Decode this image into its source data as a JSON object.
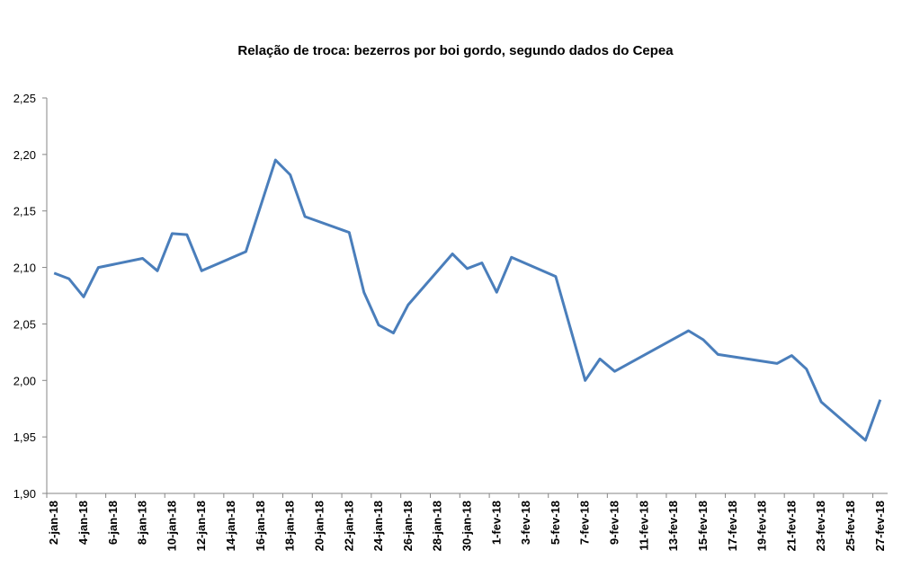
{
  "chart_data": {
    "type": "line",
    "title": "Relação de troca: bezerros por boi gordo, segundo dados do Cepea",
    "xlabel": "",
    "ylabel": "",
    "ylim": [
      1.9,
      2.25
    ],
    "yticks": [
      "1,90",
      "1,95",
      "2,00",
      "2,05",
      "2,10",
      "2,15",
      "2,20",
      "2,25"
    ],
    "ytick_values": [
      1.9,
      1.95,
      2.0,
      2.05,
      2.1,
      2.15,
      2.2,
      2.25
    ],
    "x_range": [
      "2018-01-02",
      "2018-02-27"
    ],
    "xtick_labels": [
      "2-jan-18",
      "4-jan-18",
      "6-jan-18",
      "8-jan-18",
      "10-jan-18",
      "12-jan-18",
      "14-jan-18",
      "16-jan-18",
      "18-jan-18",
      "20-jan-18",
      "22-jan-18",
      "24-jan-18",
      "26-jan-18",
      "28-jan-18",
      "30-jan-18",
      "1-fev-18",
      "3-fev-18",
      "5-fev-18",
      "7-fev-18",
      "9-fev-18",
      "11-fev-18",
      "13-fev-18",
      "15-fev-18",
      "17-fev-18",
      "19-fev-18",
      "21-fev-18",
      "23-fev-18",
      "25-fev-18",
      "27-fev-18"
    ],
    "grid": false,
    "color": "#4A7EBB",
    "series": [
      {
        "name": "Relação de troca",
        "points": [
          [
            "2018-01-02",
            2.095
          ],
          [
            "2018-01-03",
            2.09
          ],
          [
            "2018-01-04",
            2.074
          ],
          [
            "2018-01-05",
            2.1
          ],
          [
            "2018-01-08",
            2.108
          ],
          [
            "2018-01-09",
            2.097
          ],
          [
            "2018-01-10",
            2.13
          ],
          [
            "2018-01-11",
            2.129
          ],
          [
            "2018-01-12",
            2.097
          ],
          [
            "2018-01-15",
            2.114
          ],
          [
            "2018-01-17",
            2.195
          ],
          [
            "2018-01-18",
            2.182
          ],
          [
            "2018-01-19",
            2.145
          ],
          [
            "2018-01-22",
            2.131
          ],
          [
            "2018-01-23",
            2.078
          ],
          [
            "2018-01-24",
            2.049
          ],
          [
            "2018-01-25",
            2.042
          ],
          [
            "2018-01-26",
            2.067
          ],
          [
            "2018-01-29",
            2.112
          ],
          [
            "2018-01-30",
            2.099
          ],
          [
            "2018-01-31",
            2.104
          ],
          [
            "2018-02-01",
            2.078
          ],
          [
            "2018-02-02",
            2.109
          ],
          [
            "2018-02-05",
            2.092
          ],
          [
            "2018-02-07",
            2.0
          ],
          [
            "2018-02-08",
            2.019
          ],
          [
            "2018-02-09",
            2.008
          ],
          [
            "2018-02-14",
            2.044
          ],
          [
            "2018-02-15",
            2.036
          ],
          [
            "2018-02-16",
            2.023
          ],
          [
            "2018-02-20",
            2.015
          ],
          [
            "2018-02-21",
            2.022
          ],
          [
            "2018-02-22",
            2.01
          ],
          [
            "2018-02-23",
            1.981
          ],
          [
            "2018-02-26",
            1.947
          ],
          [
            "2018-02-27",
            1.983
          ]
        ]
      }
    ]
  }
}
